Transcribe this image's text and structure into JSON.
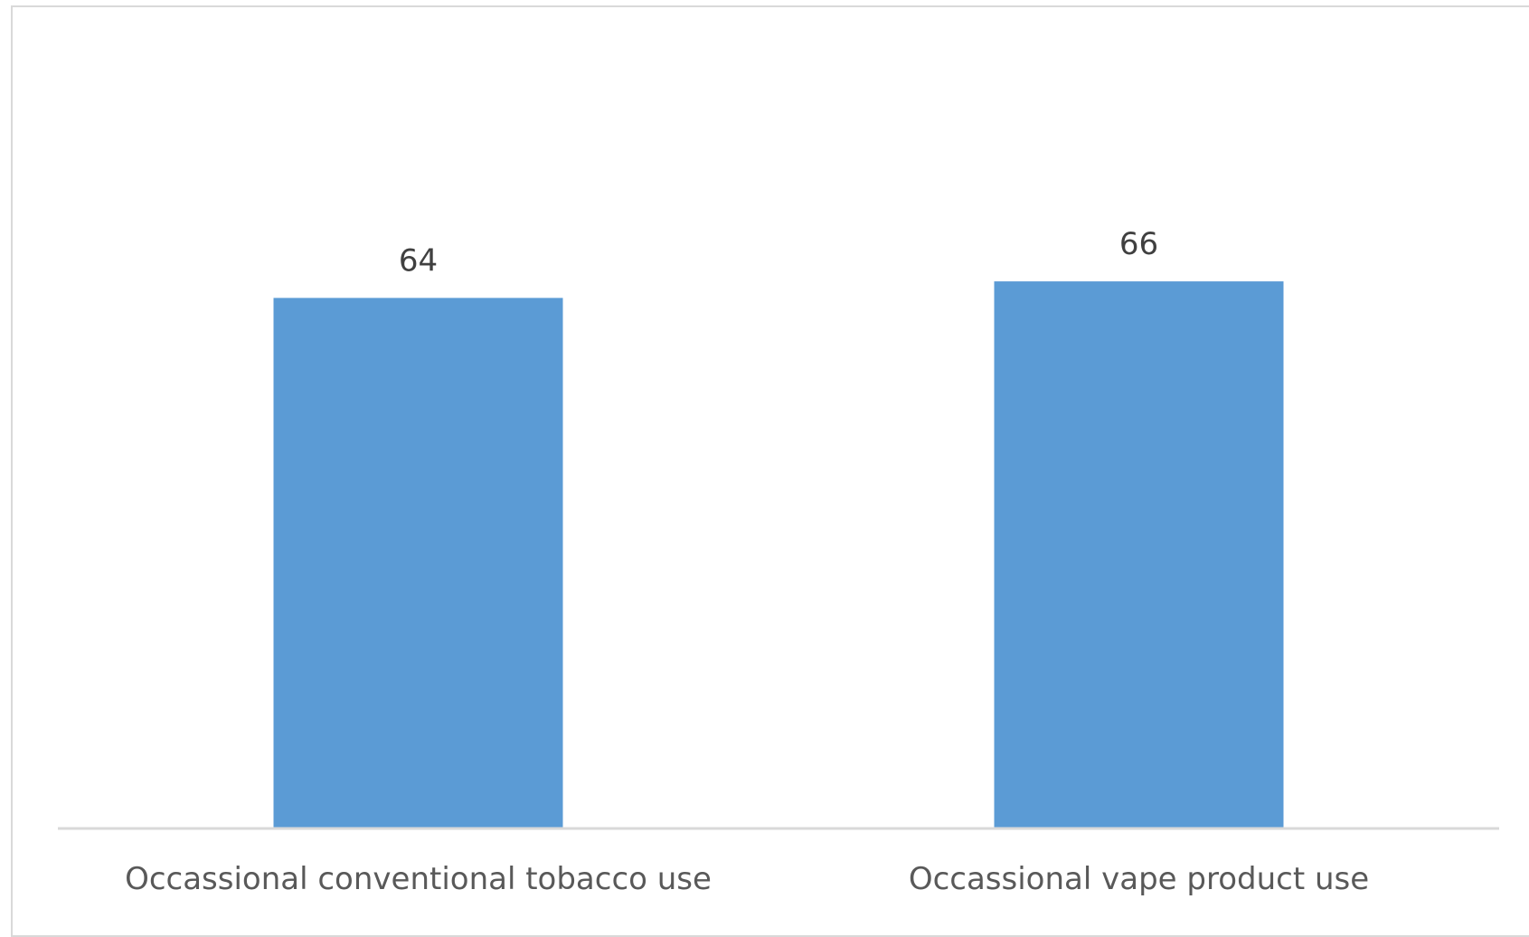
{
  "chart_data": {
    "type": "bar",
    "title": "",
    "xlabel": "",
    "ylabel": "",
    "categories": [
      "Occassional conventional tobacco use",
      "Occassional vape product use"
    ],
    "values": [
      64,
      66
    ],
    "data_labels": [
      "64",
      "66"
    ],
    "ylim": [
      0,
      100
    ],
    "bar_color": "#5b9bd5",
    "axis_color": "#d9d9d9",
    "grid": false,
    "legend": "none"
  }
}
